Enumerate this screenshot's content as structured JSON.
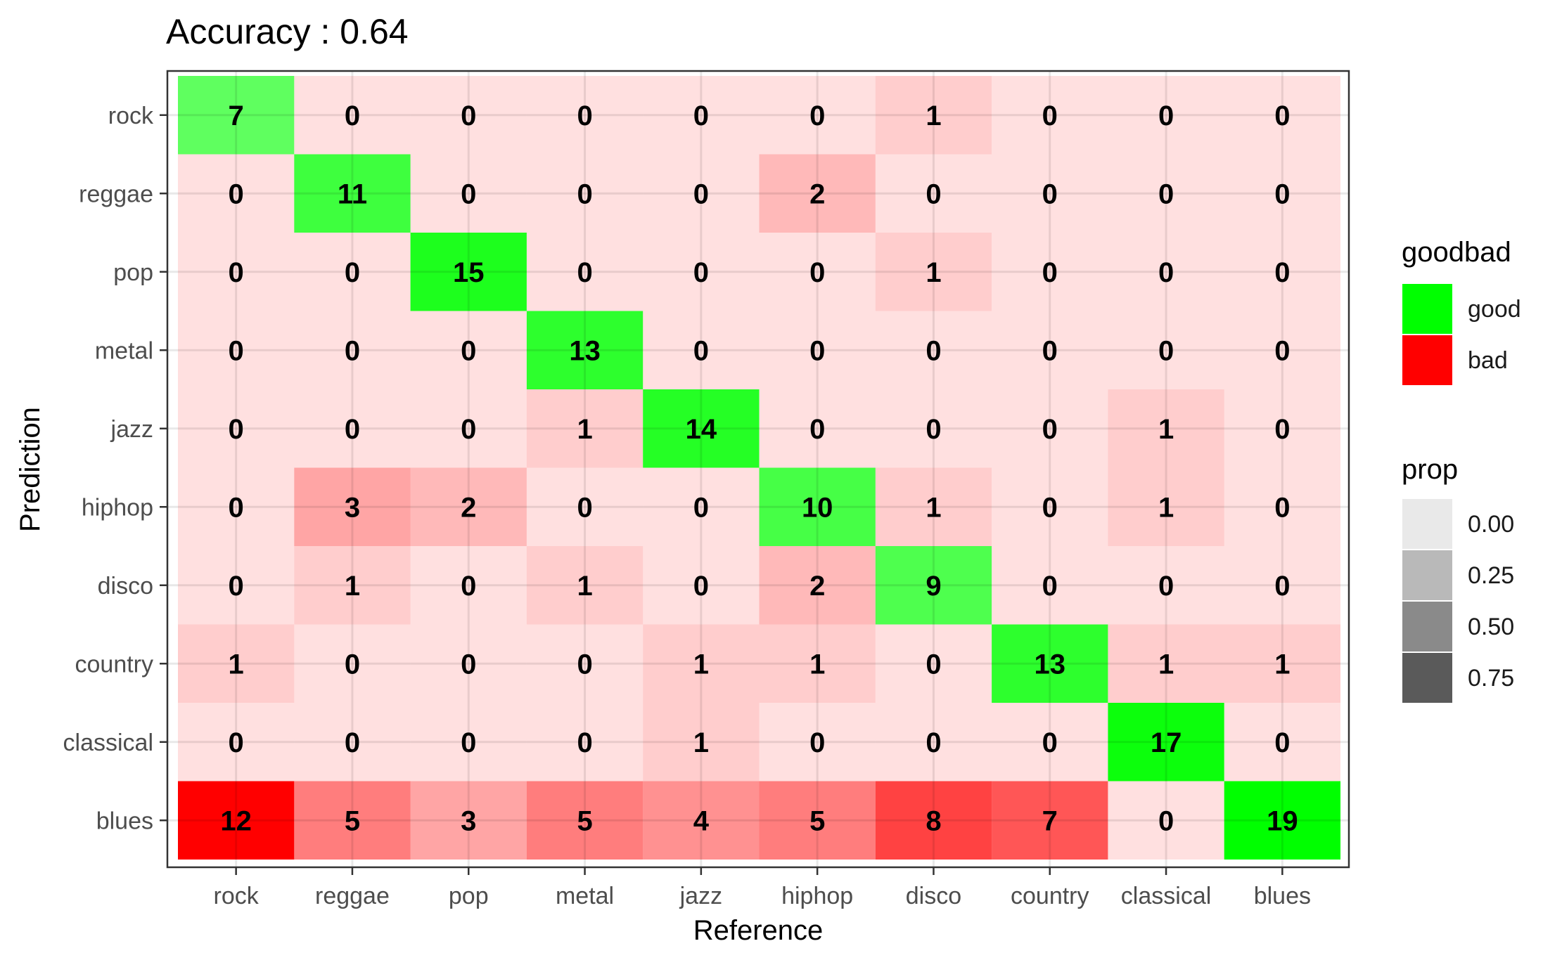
{
  "chart_data": {
    "type": "heatmap",
    "title": "Accuracy : 0.64",
    "xlabel": "Reference",
    "ylabel": "Prediction",
    "x_categories": [
      "rock",
      "reggae",
      "pop",
      "metal",
      "jazz",
      "hiphop",
      "disco",
      "country",
      "classical",
      "blues"
    ],
    "y_categories_top_to_bottom": [
      "rock",
      "reggae",
      "pop",
      "metal",
      "jazz",
      "hiphop",
      "disco",
      "country",
      "classical",
      "blues"
    ],
    "matrix": [
      [
        7,
        0,
        0,
        0,
        0,
        0,
        1,
        0,
        0,
        0
      ],
      [
        0,
        11,
        0,
        0,
        0,
        2,
        0,
        0,
        0,
        0
      ],
      [
        0,
        0,
        15,
        0,
        0,
        0,
        1,
        0,
        0,
        0
      ],
      [
        0,
        0,
        0,
        13,
        0,
        0,
        0,
        0,
        0,
        0
      ],
      [
        0,
        0,
        0,
        1,
        14,
        0,
        0,
        0,
        1,
        0
      ],
      [
        0,
        3,
        2,
        0,
        0,
        10,
        1,
        0,
        1,
        0
      ],
      [
        0,
        1,
        0,
        1,
        0,
        2,
        9,
        0,
        0,
        0
      ],
      [
        1,
        0,
        0,
        0,
        1,
        1,
        0,
        13,
        1,
        1
      ],
      [
        0,
        0,
        0,
        0,
        1,
        0,
        0,
        0,
        17,
        0
      ],
      [
        12,
        5,
        3,
        5,
        4,
        5,
        8,
        7,
        0,
        19
      ]
    ],
    "legend_goodbad": {
      "title": "goodbad",
      "items": [
        {
          "label": "good",
          "color": "#00ff00"
        },
        {
          "label": "bad",
          "color": "#ff0000"
        }
      ]
    },
    "legend_prop": {
      "title": "prop",
      "items": [
        {
          "label": "0.00",
          "value": 0.0
        },
        {
          "label": "0.25",
          "value": 0.25
        },
        {
          "label": "0.50",
          "value": 0.5
        },
        {
          "label": "0.75",
          "value": 0.75
        }
      ]
    },
    "colors": {
      "good": "#00ff00",
      "bad": "#ff0000",
      "panel_bg": "#ffffff",
      "grid": "#ebebeb"
    }
  }
}
